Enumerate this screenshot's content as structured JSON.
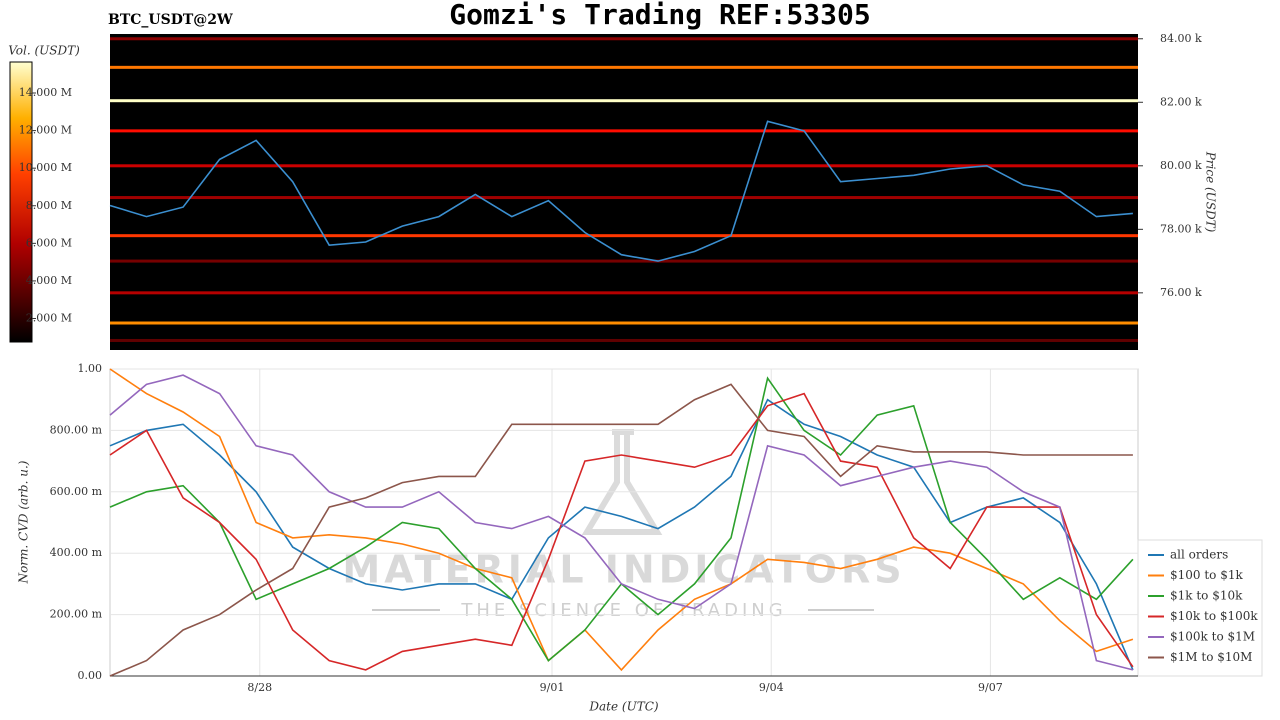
{
  "title": "Gomzi's Trading REF:53305",
  "symbol": "BTC_USDT@2W",
  "watermark": {
    "name": "MATERIAL INDICATORS",
    "tagline": "THE SCIENCE OF TRADING"
  },
  "chart_data": [
    {
      "type": "heatmap",
      "y_label": "Price (USDT)",
      "colorbar_label": "Vol. (USDT)",
      "ylim": [
        74200,
        84150
      ],
      "yticks": [
        {
          "value": 76000,
          "label": "76.00 k"
        },
        {
          "value": 78000,
          "label": "78.00 k"
        },
        {
          "value": 80000,
          "label": "80.00 k"
        },
        {
          "value": 82000,
          "label": "82.00 k"
        },
        {
          "value": 84000,
          "label": "84.00 k"
        }
      ],
      "clim": [
        750000,
        15650000
      ],
      "cticks": [
        {
          "value": 2000000,
          "label": "2.000 M"
        },
        {
          "value": 4000000,
          "label": "4.000 M"
        },
        {
          "value": 6000000,
          "label": "6.000 M"
        },
        {
          "value": 8000000,
          "label": "8.000 M"
        },
        {
          "value": 10000000,
          "label": "10.000 M"
        },
        {
          "value": 12000000,
          "label": "12.000 M"
        },
        {
          "value": 14000000,
          "label": "14.000 M"
        }
      ],
      "xlim": [
        0,
        14.07
      ],
      "x": [
        0,
        0.5,
        1,
        1.5,
        2,
        2.5,
        3,
        3.5,
        4,
        4.5,
        5,
        5.5,
        6,
        6.5,
        7,
        7.5,
        8,
        8.5,
        9,
        9.5,
        10,
        10.5,
        11,
        11.5,
        12,
        12.5,
        13,
        13.5,
        14
      ],
      "levels": [
        {
          "price": 84000,
          "volume": 4000000
        },
        {
          "price": 83100,
          "volume": 9500000
        },
        {
          "price": 82050,
          "volume": 15000000
        },
        {
          "price": 81100,
          "volume": 7000000
        },
        {
          "price": 80000,
          "volume": 5500000
        },
        {
          "price": 79000,
          "volume": 4500000
        },
        {
          "price": 77800,
          "volume": 8000000
        },
        {
          "price": 77000,
          "volume": 3500000
        },
        {
          "price": 76000,
          "volume": 5000000
        },
        {
          "price": 75050,
          "volume": 10000000
        },
        {
          "price": 74500,
          "volume": 3000000
        }
      ],
      "series": [
        {
          "name": "price",
          "color": "#3b8fd0",
          "values": [
            78750,
            78400,
            78700,
            80200,
            80800,
            79500,
            77500,
            77600,
            78100,
            78400,
            79100,
            78400,
            78900,
            77900,
            77200,
            77000,
            77300,
            77800,
            81400,
            81100,
            79500,
            79600,
            79700,
            79900,
            80000,
            79400,
            79200,
            78400,
            78500
          ]
        }
      ]
    },
    {
      "type": "line",
      "y_label": "Norm. CVD (arb. u.)",
      "x_label": "Date (UTC)",
      "xlim": [
        0,
        14.07
      ],
      "xticks": [
        {
          "value": 2.05,
          "label": "8/28"
        },
        {
          "value": 6.05,
          "label": "9/01"
        },
        {
          "value": 9.05,
          "label": "9/04"
        },
        {
          "value": 12.05,
          "label": "9/07"
        }
      ],
      "ylim": [
        0,
        1
      ],
      "yticks": [
        {
          "value": 0,
          "label": "0.00"
        },
        {
          "value": 0.2,
          "label": "200.00 m"
        },
        {
          "value": 0.4,
          "label": "400.00 m"
        },
        {
          "value": 0.6,
          "label": "600.00 m"
        },
        {
          "value": 0.8,
          "label": "800.00 m"
        },
        {
          "value": 1,
          "label": "1.00"
        }
      ],
      "grid": true,
      "x": [
        0,
        0.5,
        1,
        1.5,
        2,
        2.5,
        3,
        3.5,
        4,
        4.5,
        5,
        5.5,
        6,
        6.5,
        7,
        7.5,
        8,
        8.5,
        9,
        9.5,
        10,
        10.5,
        11,
        11.5,
        12,
        12.5,
        13,
        13.5,
        14
      ],
      "series": [
        {
          "name": "all orders",
          "color": "#1f77b4",
          "values": [
            0.75,
            0.8,
            0.82,
            0.72,
            0.6,
            0.42,
            0.35,
            0.3,
            0.28,
            0.3,
            0.3,
            0.25,
            0.45,
            0.55,
            0.52,
            0.48,
            0.55,
            0.65,
            0.9,
            0.82,
            0.78,
            0.72,
            0.68,
            0.5,
            0.55,
            0.58,
            0.5,
            0.3,
            0.02
          ]
        },
        {
          "name": "$100 to $1k",
          "color": "#ff7f0e",
          "values": [
            1.0,
            0.92,
            0.86,
            0.78,
            0.5,
            0.45,
            0.46,
            0.45,
            0.43,
            0.4,
            0.35,
            0.32,
            0.05,
            0.15,
            0.02,
            0.15,
            0.25,
            0.3,
            0.38,
            0.37,
            0.35,
            0.38,
            0.42,
            0.4,
            0.35,
            0.3,
            0.18,
            0.08,
            0.12
          ]
        },
        {
          "name": "$1k to $10k",
          "color": "#2ca02c",
          "values": [
            0.55,
            0.6,
            0.62,
            0.5,
            0.25,
            0.3,
            0.35,
            0.42,
            0.5,
            0.48,
            0.35,
            0.25,
            0.05,
            0.15,
            0.3,
            0.2,
            0.3,
            0.45,
            0.97,
            0.8,
            0.72,
            0.85,
            0.88,
            0.5,
            0.38,
            0.25,
            0.32,
            0.25,
            0.38
          ]
        },
        {
          "name": "$10k to $100k",
          "color": "#d62728",
          "values": [
            0.72,
            0.8,
            0.58,
            0.5,
            0.38,
            0.15,
            0.05,
            0.02,
            0.08,
            0.1,
            0.12,
            0.1,
            0.38,
            0.7,
            0.72,
            0.7,
            0.68,
            0.72,
            0.88,
            0.92,
            0.7,
            0.68,
            0.45,
            0.35,
            0.55,
            0.55,
            0.55,
            0.2,
            0.03
          ]
        },
        {
          "name": "$100k to $1M",
          "color": "#9467bd",
          "values": [
            0.85,
            0.95,
            0.98,
            0.92,
            0.75,
            0.72,
            0.6,
            0.55,
            0.55,
            0.6,
            0.5,
            0.48,
            0.52,
            0.45,
            0.3,
            0.25,
            0.22,
            0.3,
            0.75,
            0.72,
            0.62,
            0.65,
            0.68,
            0.7,
            0.68,
            0.6,
            0.55,
            0.05,
            0.02
          ]
        },
        {
          "name": "$1M to $10M",
          "color": "#8c564b",
          "values": [
            0.0,
            0.05,
            0.15,
            0.2,
            0.28,
            0.35,
            0.55,
            0.58,
            0.63,
            0.65,
            0.65,
            0.82,
            0.82,
            0.82,
            0.82,
            0.82,
            0.9,
            0.95,
            0.8,
            0.78,
            0.65,
            0.75,
            0.73,
            0.73,
            0.73,
            0.72,
            0.72,
            0.72,
            0.72
          ]
        }
      ]
    }
  ]
}
